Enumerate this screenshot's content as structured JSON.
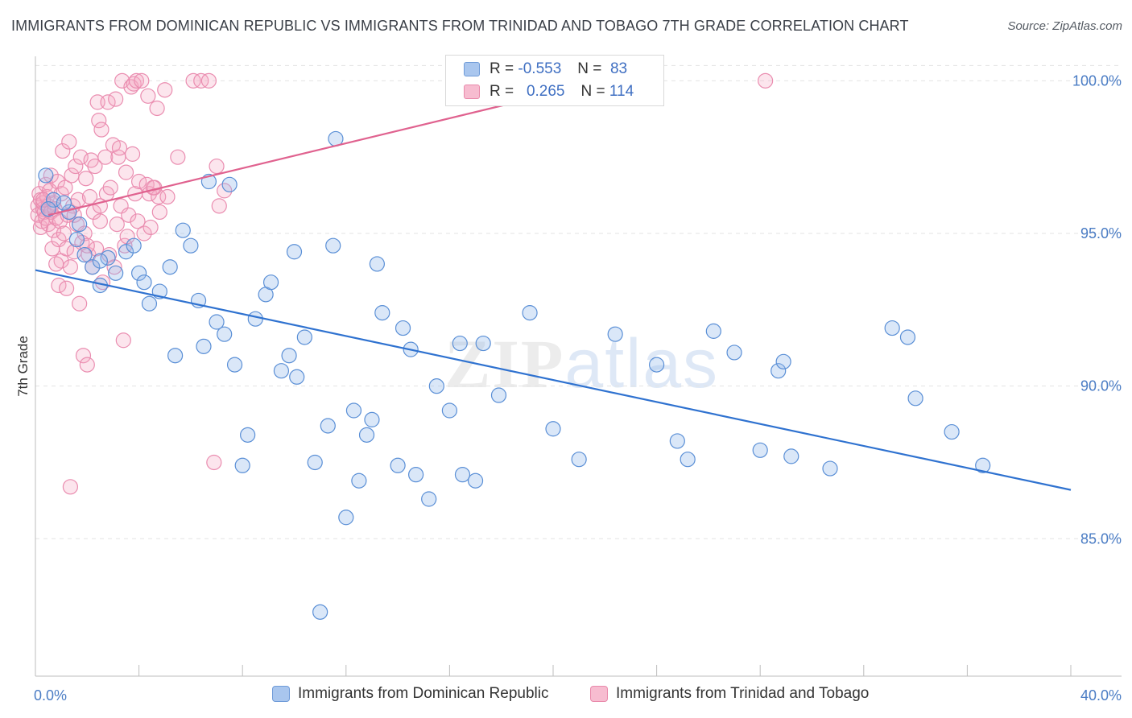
{
  "title": "IMMIGRANTS FROM DOMINICAN REPUBLIC VS IMMIGRANTS FROM TRINIDAD AND TOBAGO 7TH GRADE CORRELATION CHART",
  "source": "Source: ZipAtlas.com",
  "watermark": {
    "zip": "ZIP",
    "atlas": "atlas"
  },
  "legend": {
    "r_label": "R =",
    "n_label": "N =",
    "rows": [
      {
        "r": "-0.553",
        "n": "83",
        "color": "#a9c6ee",
        "border": "#6f9bd8"
      },
      {
        "r": "0.265",
        "n": "114",
        "color": "#f7bcd0",
        "border": "#e98aab"
      }
    ]
  },
  "colors": {
    "blue_fill": "rgba(150,185,235,0.35)",
    "blue_stroke": "#5a8fd6",
    "blue_line": "#2f72d0",
    "pink_fill": "rgba(245,170,195,0.30)",
    "pink_stroke": "#ea8db0",
    "pink_line": "#e0628f"
  },
  "chart_data": {
    "type": "scatter",
    "title": "IMMIGRANTS FROM DOMINICAN REPUBLIC VS IMMIGRANTS FROM TRINIDAD AND TOBAGO 7TH GRADE CORRELATION CHART",
    "xlabel": "",
    "ylabel": "7th Grade",
    "xlim": [
      0,
      40
    ],
    "ylim": [
      80.5,
      100.8
    ],
    "x_tick_labels": [
      "0.0%",
      "40.0%"
    ],
    "y_ticks": [
      85,
      90,
      95,
      100
    ],
    "y_tick_labels": [
      "85.0%",
      "90.0%",
      "95.0%",
      "100.0%"
    ],
    "grid": true,
    "legend_position": "bottom",
    "series": [
      {
        "name": "Immigrants from Dominican Republic",
        "r": -0.553,
        "n": 83,
        "trend": {
          "x": [
            0,
            40
          ],
          "y": [
            93.8,
            86.6
          ]
        },
        "points": [
          [
            0.4,
            96.9
          ],
          [
            0.7,
            96.1
          ],
          [
            1.3,
            95.7
          ],
          [
            1.7,
            95.3
          ],
          [
            1.6,
            94.8
          ],
          [
            1.9,
            94.3
          ],
          [
            2.2,
            93.9
          ],
          [
            2.5,
            93.3
          ],
          [
            2.8,
            94.2
          ],
          [
            3.1,
            93.7
          ],
          [
            3.5,
            94.4
          ],
          [
            4.0,
            93.7
          ],
          [
            4.2,
            93.4
          ],
          [
            4.4,
            92.7
          ],
          [
            4.8,
            93.1
          ],
          [
            5.2,
            93.9
          ],
          [
            5.4,
            91.0
          ],
          [
            5.7,
            95.1
          ],
          [
            6.0,
            94.6
          ],
          [
            6.3,
            92.8
          ],
          [
            6.5,
            91.3
          ],
          [
            6.7,
            96.7
          ],
          [
            7.0,
            92.1
          ],
          [
            7.3,
            91.7
          ],
          [
            7.5,
            96.6
          ],
          [
            7.7,
            90.7
          ],
          [
            8.2,
            88.4
          ],
          [
            8.0,
            87.4
          ],
          [
            8.5,
            92.2
          ],
          [
            8.9,
            93.0
          ],
          [
            9.1,
            93.4
          ],
          [
            9.5,
            90.5
          ],
          [
            9.8,
            91.0
          ],
          [
            10.1,
            90.3
          ],
          [
            10.0,
            94.4
          ],
          [
            10.4,
            91.6
          ],
          [
            10.8,
            87.5
          ],
          [
            11.0,
            82.6
          ],
          [
            11.3,
            88.7
          ],
          [
            11.5,
            94.6
          ],
          [
            11.6,
            98.1
          ],
          [
            12.0,
            85.7
          ],
          [
            12.3,
            89.2
          ],
          [
            12.5,
            86.9
          ],
          [
            12.8,
            88.4
          ],
          [
            13.0,
            88.9
          ],
          [
            13.2,
            94.0
          ],
          [
            13.4,
            92.4
          ],
          [
            14.0,
            87.4
          ],
          [
            14.2,
            91.9
          ],
          [
            14.5,
            91.2
          ],
          [
            14.7,
            87.1
          ],
          [
            15.2,
            86.3
          ],
          [
            15.5,
            90.0
          ],
          [
            16.0,
            89.2
          ],
          [
            16.4,
            91.4
          ],
          [
            16.5,
            87.1
          ],
          [
            17.0,
            86.9
          ],
          [
            17.3,
            91.4
          ],
          [
            17.9,
            89.7
          ],
          [
            19.1,
            92.4
          ],
          [
            20.0,
            88.6
          ],
          [
            21.0,
            87.6
          ],
          [
            22.4,
            91.7
          ],
          [
            24.0,
            90.7
          ],
          [
            24.8,
            88.2
          ],
          [
            25.2,
            87.6
          ],
          [
            26.2,
            91.8
          ],
          [
            27.0,
            91.1
          ],
          [
            28.0,
            87.9
          ],
          [
            28.7,
            90.5
          ],
          [
            28.9,
            90.8
          ],
          [
            29.2,
            87.7
          ],
          [
            30.7,
            87.3
          ],
          [
            33.1,
            91.9
          ],
          [
            33.7,
            91.6
          ],
          [
            34.0,
            89.6
          ],
          [
            35.4,
            88.5
          ],
          [
            36.6,
            87.4
          ],
          [
            0.5,
            95.8
          ],
          [
            1.1,
            96.0
          ],
          [
            2.5,
            94.1
          ],
          [
            3.8,
            94.6
          ]
        ]
      },
      {
        "name": "Immigrants from Trinidad and Tobago",
        "r": 0.265,
        "n": 114,
        "trend": {
          "x": [
            0.5,
            22.0
          ],
          "y": [
            95.6,
            100.0
          ]
        },
        "points": [
          [
            0.1,
            95.9
          ],
          [
            0.1,
            95.6
          ],
          [
            0.15,
            96.3
          ],
          [
            0.2,
            95.2
          ],
          [
            0.2,
            96.1
          ],
          [
            0.25,
            95.4
          ],
          [
            0.3,
            95.8
          ],
          [
            0.3,
            96.0
          ],
          [
            0.35,
            95.7
          ],
          [
            0.4,
            96.6
          ],
          [
            0.4,
            95.5
          ],
          [
            0.45,
            96.2
          ],
          [
            0.5,
            95.9
          ],
          [
            0.5,
            95.3
          ],
          [
            0.55,
            96.4
          ],
          [
            0.6,
            95.7
          ],
          [
            0.6,
            96.9
          ],
          [
            0.65,
            94.5
          ],
          [
            0.7,
            96.0
          ],
          [
            0.7,
            95.1
          ],
          [
            0.75,
            95.8
          ],
          [
            0.8,
            95.5
          ],
          [
            0.85,
            96.7
          ],
          [
            0.9,
            94.8
          ],
          [
            0.9,
            93.3
          ],
          [
            0.95,
            95.4
          ],
          [
            1.0,
            96.3
          ],
          [
            1.0,
            94.1
          ],
          [
            1.05,
            97.7
          ],
          [
            1.1,
            95.0
          ],
          [
            1.15,
            96.5
          ],
          [
            1.2,
            94.5
          ],
          [
            1.25,
            95.6
          ],
          [
            1.3,
            98.0
          ],
          [
            1.35,
            93.9
          ],
          [
            1.4,
            96.9
          ],
          [
            1.45,
            95.9
          ],
          [
            1.5,
            94.4
          ],
          [
            1.55,
            97.2
          ],
          [
            1.6,
            95.3
          ],
          [
            1.65,
            96.1
          ],
          [
            1.7,
            92.7
          ],
          [
            1.75,
            97.5
          ],
          [
            1.8,
            94.7
          ],
          [
            1.85,
            91.0
          ],
          [
            1.9,
            95.0
          ],
          [
            1.95,
            96.8
          ],
          [
            2.0,
            90.7
          ],
          [
            2.05,
            94.3
          ],
          [
            2.1,
            96.2
          ],
          [
            2.15,
            97.4
          ],
          [
            2.2,
            93.9
          ],
          [
            2.25,
            95.7
          ],
          [
            2.3,
            97.2
          ],
          [
            2.35,
            94.5
          ],
          [
            2.4,
            99.3
          ],
          [
            2.45,
            98.7
          ],
          [
            2.5,
            95.4
          ],
          [
            2.55,
            98.4
          ],
          [
            2.6,
            93.4
          ],
          [
            2.7,
            97.5
          ],
          [
            2.75,
            96.3
          ],
          [
            2.8,
            99.3
          ],
          [
            2.85,
            94.3
          ],
          [
            2.9,
            96.5
          ],
          [
            3.0,
            97.9
          ],
          [
            3.05,
            93.9
          ],
          [
            3.1,
            99.4
          ],
          [
            3.15,
            95.3
          ],
          [
            3.2,
            97.5
          ],
          [
            3.3,
            95.9
          ],
          [
            3.35,
            100.0
          ],
          [
            3.4,
            91.5
          ],
          [
            3.45,
            94.6
          ],
          [
            3.5,
            97.0
          ],
          [
            3.55,
            94.9
          ],
          [
            3.6,
            95.6
          ],
          [
            3.7,
            99.8
          ],
          [
            3.75,
            97.6
          ],
          [
            3.8,
            99.9
          ],
          [
            3.85,
            96.3
          ],
          [
            3.9,
            100.0
          ],
          [
            3.95,
            95.4
          ],
          [
            4.0,
            96.7
          ],
          [
            4.1,
            100.0
          ],
          [
            4.2,
            95.0
          ],
          [
            4.3,
            96.6
          ],
          [
            4.35,
            99.5
          ],
          [
            4.4,
            96.3
          ],
          [
            4.45,
            95.2
          ],
          [
            4.6,
            96.5
          ],
          [
            4.7,
            99.1
          ],
          [
            4.75,
            96.2
          ],
          [
            4.8,
            95.7
          ],
          [
            5.0,
            99.7
          ],
          [
            5.1,
            96.2
          ],
          [
            5.5,
            97.5
          ],
          [
            6.1,
            100.0
          ],
          [
            6.4,
            100.0
          ],
          [
            6.7,
            100.0
          ],
          [
            6.9,
            87.5
          ],
          [
            7.0,
            97.2
          ],
          [
            7.1,
            95.9
          ],
          [
            7.3,
            96.4
          ],
          [
            1.35,
            86.7
          ],
          [
            1.2,
            93.2
          ],
          [
            1.5,
            95.6
          ],
          [
            2.0,
            94.6
          ],
          [
            3.25,
            97.8
          ],
          [
            4.55,
            96.5
          ],
          [
            28.2,
            100.0
          ],
          [
            0.3,
            96.1
          ],
          [
            0.8,
            94.0
          ],
          [
            2.5,
            95.9
          ]
        ]
      }
    ]
  }
}
